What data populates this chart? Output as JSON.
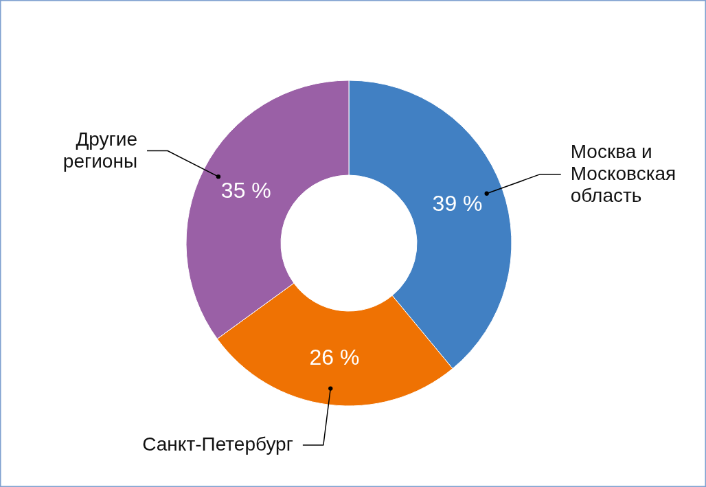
{
  "chart_data": {
    "type": "donut",
    "categories": [
      "Москва и Московская область",
      "Санкт-Петербург",
      "Другие регионы"
    ],
    "values": [
      39,
      26,
      35
    ],
    "colors": [
      "#4180c3",
      "#ef7203",
      "#9a60a6"
    ],
    "value_labels": [
      "39 %",
      "26 %",
      "35 %"
    ]
  }
}
